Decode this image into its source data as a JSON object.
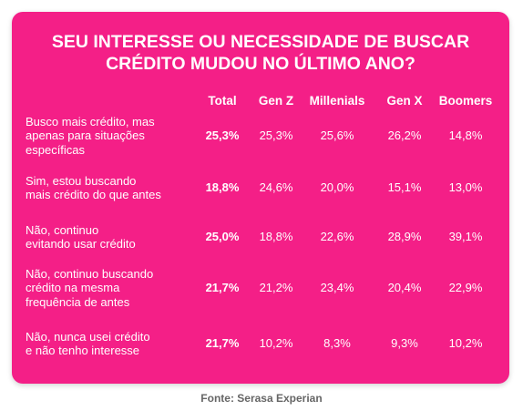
{
  "title_lines": [
    "SEU INTERESSE OU NECESSIDADE DE BUSCAR",
    "CRÉDITO MUDOU NO ÚLTIMO ANO?"
  ],
  "source": "Fonte: Serasa Experian",
  "colors": {
    "card": "#f41f87",
    "text": "#ffffff",
    "source": "#666666"
  },
  "chart_data": {
    "type": "table",
    "title": "SEU INTERESSE OU NECESSIDADE DE BUSCAR CRÉDITO MUDOU NO ÚLTIMO ANO?",
    "columns": [
      "Total",
      "Gen Z",
      "Millenials",
      "Gen X",
      "Boomers"
    ],
    "rows": [
      {
        "label_lines": [
          "Busco mais crédito, mas",
          "apenas para situações",
          "específicas"
        ],
        "values": [
          "25,3%",
          "25,3%",
          "25,6%",
          "26,2%",
          "14,8%"
        ]
      },
      {
        "label_lines": [
          "Sim, estou buscando",
          "mais crédito do que antes"
        ],
        "values": [
          "18,8%",
          "24,6%",
          "20,0%",
          "15,1%",
          "13,0%"
        ]
      },
      {
        "label_lines": [
          "Não, continuo",
          "evitando usar crédito"
        ],
        "values": [
          "25,0%",
          "18,8%",
          "22,6%",
          "28,9%",
          "39,1%"
        ]
      },
      {
        "label_lines": [
          "Não, continuo buscando",
          "crédito na mesma",
          "frequência de antes"
        ],
        "values": [
          "21,7%",
          "21,2%",
          "23,4%",
          "20,4%",
          "22,9%"
        ]
      },
      {
        "label_lines": [
          "Não, nunca usei crédito",
          "e não tenho interesse"
        ],
        "values": [
          "21,7%",
          "10,2%",
          "8,3%",
          "9,3%",
          "10,2%"
        ]
      }
    ]
  }
}
